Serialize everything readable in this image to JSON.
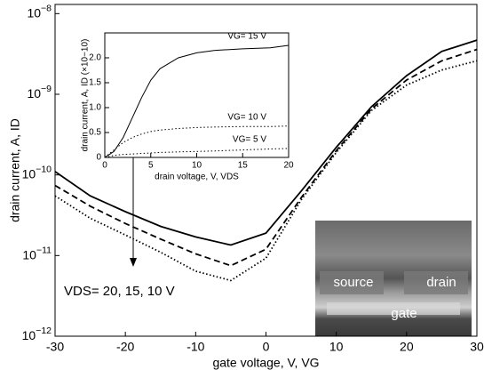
{
  "chart_data": [
    {
      "type": "line",
      "log_y": true,
      "xlabel": "gate voltage, V, VG",
      "ylabel": "drain current, A, ID",
      "annotation": "VDS= 20, 15, 10 V",
      "x": [
        -30,
        -25,
        -20,
        -15,
        -10,
        -5,
        0,
        5,
        10,
        15,
        20,
        25,
        30
      ],
      "series": [
        {
          "color": "#000000",
          "line_style": "solid",
          "values": [
            1.1e-10,
            5.5e-11,
            3.5e-11,
            2.3e-11,
            1.7e-11,
            1.35e-11,
            1.9e-11,
            6.3e-11,
            2.2e-10,
            7e-10,
            1.7e-09,
            3.4e-09,
            4.7e-09
          ]
        },
        {
          "color": "#000000",
          "line_style": "dashed",
          "values": [
            7.4e-11,
            4.1e-11,
            2.5e-11,
            1.6e-11,
            1.05e-11,
            7.5e-12,
            1.2e-11,
            5.2e-11,
            2e-10,
            6.6e-10,
            1.5e-09,
            2.6e-09,
            3.6e-09
          ]
        },
        {
          "color": "#000000",
          "line_style": "dotted",
          "values": [
            5.5e-11,
            2.9e-11,
            1.8e-11,
            1.1e-11,
            6.4e-12,
            4.9e-12,
            9.3e-12,
            4.9e-11,
            1.9e-10,
            6.3e-10,
            1.3e-09,
            2e-09,
            2.6e-09
          ]
        }
      ],
      "xlim": [
        -30,
        30
      ],
      "xticks": [
        -30,
        -20,
        -10,
        0,
        10,
        20,
        30
      ],
      "ylim": [
        1e-12,
        1.3e-08
      ],
      "yticks": [
        {
          "value": 1e-12,
          "label": "10−12"
        },
        {
          "value": 1e-11,
          "label": "10−11"
        },
        {
          "value": 1e-10,
          "label": "10−10"
        },
        {
          "value": 1e-09,
          "label": "10−9"
        },
        {
          "value": 1e-08,
          "label": "10−8"
        }
      ]
    },
    {
      "type": "line",
      "log_y": false,
      "xlabel": "drain voltage, V, VDS",
      "ylabel": "drain current, A, ID (×10−10)",
      "x": [
        0,
        1,
        2,
        3,
        4,
        5,
        6,
        8,
        10,
        12,
        15,
        18,
        20
      ],
      "series": [
        {
          "color": "#000000",
          "line_style": "solid",
          "label": "VG= 15 V",
          "values": [
            0,
            0.12,
            0.4,
            0.8,
            1.2,
            1.55,
            1.78,
            2.0,
            2.1,
            2.15,
            2.18,
            2.2,
            2.25
          ]
        },
        {
          "color": "#000000",
          "line_style": "dotted",
          "label": "VG= 10 V",
          "values": [
            0,
            0.15,
            0.3,
            0.4,
            0.47,
            0.52,
            0.55,
            0.58,
            0.6,
            0.61,
            0.62,
            0.62,
            0.63
          ]
        },
        {
          "color": "#000000",
          "line_style": "dotted",
          "label": "VG= 5 V",
          "values": [
            0,
            0.04,
            0.06,
            0.07,
            0.08,
            0.09,
            0.1,
            0.11,
            0.12,
            0.13,
            0.15,
            0.17,
            0.18
          ]
        }
      ],
      "xlim": [
        0,
        20
      ],
      "xticks": [
        0,
        5,
        10,
        15,
        20
      ],
      "ylim": [
        0,
        2.5
      ],
      "yticks": [
        0,
        0.5,
        {
          "value": 1,
          "label": "1.0"
        },
        1.5,
        {
          "value": 2,
          "label": "2.0"
        }
      ]
    }
  ],
  "image": {
    "labels": [
      "source",
      "drain",
      "gate"
    ]
  }
}
